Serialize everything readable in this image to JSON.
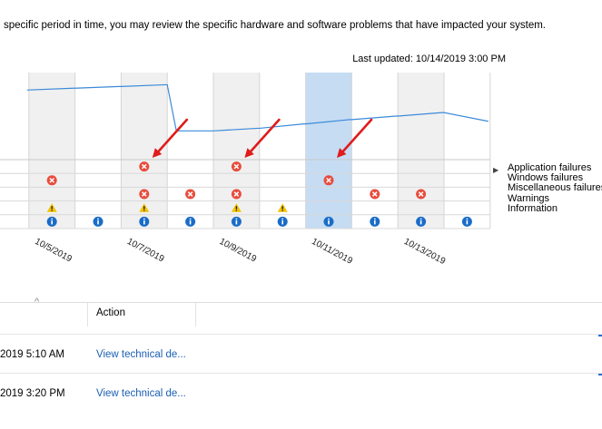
{
  "intro_text": "specific period in time, you may review the specific hardware and software problems that have impacted your system.",
  "last_updated": "Last updated: 10/14/2019 3:00 PM",
  "chart_data": {
    "type": "line",
    "columns": [
      "",
      "10/5/2019",
      "",
      "10/7/2019",
      "",
      "10/9/2019",
      "",
      "10/11/2019",
      "",
      "10/13/2019",
      ""
    ],
    "stability_index": [
      8.0,
      8.2,
      8.4,
      8.6,
      3.3,
      3.6,
      4.1,
      4.6,
      5.0,
      5.4,
      4.4
    ],
    "selected_column": 7,
    "ylim": [
      0,
      10
    ],
    "rows": [
      "Application failures",
      "Windows failures",
      "Miscellaneous failures",
      "Warnings",
      "Information"
    ],
    "events": {
      "Application failures": [
        3,
        5
      ],
      "Windows failures": [
        1,
        7
      ],
      "Miscellaneous failures": [
        3,
        4,
        5,
        8,
        9
      ],
      "Warnings": [
        1,
        3,
        5,
        6
      ],
      "Information": [
        1,
        2,
        3,
        4,
        5,
        6,
        7,
        8,
        9,
        10
      ]
    },
    "arrow_targets": [
      3,
      5,
      7
    ]
  },
  "legend": [
    "Application failures",
    "Windows failures",
    "Miscellaneous failures",
    "Warnings",
    "Information"
  ],
  "table": {
    "header_action": "Action",
    "rows": [
      {
        "date": "2019 5:10 AM",
        "action": "View technical de..."
      },
      {
        "date": "2019 3:20 PM",
        "action": "View technical de..."
      }
    ]
  },
  "colors": {
    "line": "#3b8ad9",
    "selected": "#c5dcf3",
    "shaded": "#f0f0f0",
    "error": "#e84c3d",
    "warning": "#f2c200",
    "info": "#1a6cc8",
    "arrow": "#e01b1b"
  }
}
